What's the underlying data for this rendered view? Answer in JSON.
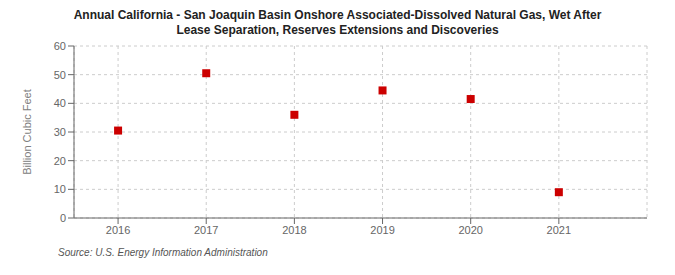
{
  "chart_data": {
    "type": "scatter",
    "title": "Annual California - San Joaquin Basin Onshore Associated-Dissolved Natural Gas, Wet After\nLease Separation, Reserves Extensions and Discoveries",
    "ylabel": "Billion Cubic Feet",
    "annotations": [
      "Source: U.S. Energy Information Administration"
    ],
    "x": [
      2016,
      2017,
      2018,
      2019,
      2020,
      2021
    ],
    "values": [
      30.5,
      50.5,
      36.0,
      44.5,
      41.5,
      9.0
    ],
    "color": "#cc0000",
    "marker": "square",
    "xlim": [
      2015.5,
      2022.0
    ],
    "ylim": [
      0,
      60
    ],
    "xticks": [
      2016,
      2017,
      2018,
      2019,
      2020,
      2021
    ],
    "yticks": [
      0,
      10,
      20,
      30,
      40,
      50,
      60
    ],
    "grid": true
  }
}
